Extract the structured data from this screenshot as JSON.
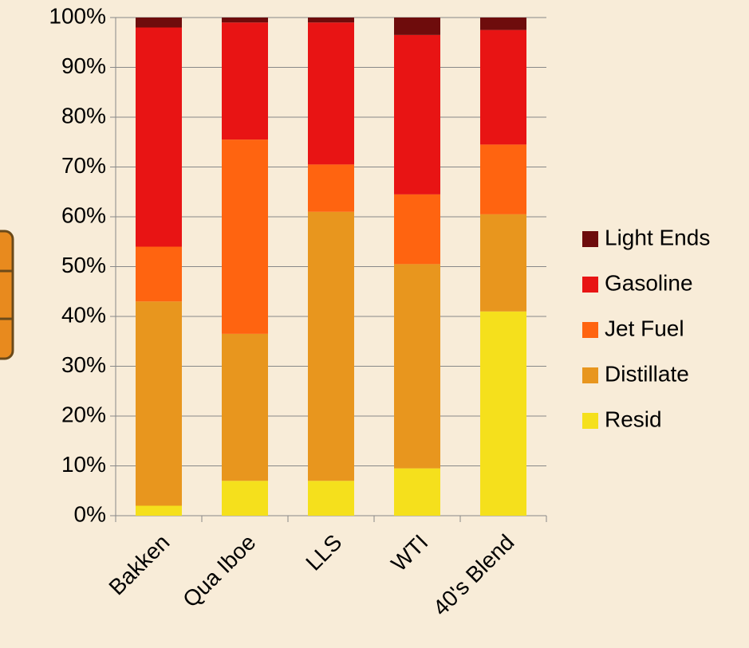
{
  "chart_data": {
    "type": "stacked_bar",
    "categories": [
      "Bakken",
      "Qua Iboe",
      "LLS",
      "WTI",
      "40's Blend"
    ],
    "series": [
      {
        "name": "Resid",
        "color": "#f5e01c",
        "values": [
          2,
          7,
          7,
          9.5,
          41
        ]
      },
      {
        "name": "Distillate",
        "color": "#e8961e",
        "values": [
          41,
          29.5,
          54,
          41,
          19.5
        ]
      },
      {
        "name": "Jet Fuel",
        "color": "#ff6410",
        "values": [
          11,
          39,
          9.5,
          14,
          14
        ]
      },
      {
        "name": "Gasoline",
        "color": "#e81414",
        "values": [
          44,
          23.5,
          28.5,
          32,
          23
        ]
      },
      {
        "name": "Light Ends",
        "color": "#6e0c0c",
        "values": [
          2,
          1,
          1,
          3.5,
          2.5
        ]
      }
    ],
    "ylim": [
      0,
      100
    ],
    "yticks": [
      {
        "value": 0,
        "label": "0%"
      },
      {
        "value": 10,
        "label": "10%"
      },
      {
        "value": 20,
        "label": "20%"
      },
      {
        "value": 30,
        "label": "30%"
      },
      {
        "value": 40,
        "label": "40%"
      },
      {
        "value": 50,
        "label": "50%"
      },
      {
        "value": 60,
        "label": "60%"
      },
      {
        "value": 70,
        "label": "70%"
      },
      {
        "value": 80,
        "label": "80%"
      },
      {
        "value": 90,
        "label": "90%"
      },
      {
        "value": 100,
        "label": "100%"
      }
    ],
    "grid": true,
    "legend": "right"
  }
}
